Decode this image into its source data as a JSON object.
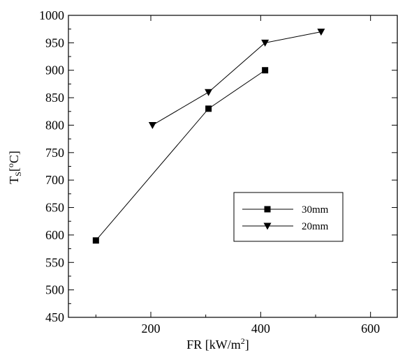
{
  "chart_data": {
    "type": "line",
    "xlabel": {
      "base": "FR [kW/m",
      "sup": "2",
      "suffix": "]"
    },
    "ylabel": {
      "base": "T",
      "sub": "S",
      "bracket_open": "[",
      "sup": "o",
      "unit": "C]"
    },
    "xlim": [
      50,
      650
    ],
    "ylim": [
      450,
      1000
    ],
    "x_ticks": [
      200,
      400,
      600
    ],
    "x_tick_labels": [
      "200",
      "400",
      "600"
    ],
    "y_ticks": [
      450,
      500,
      550,
      600,
      650,
      700,
      750,
      800,
      850,
      900,
      950,
      1000
    ],
    "y_tick_labels": [
      "450",
      "500",
      "550",
      "600",
      "650",
      "700",
      "750",
      "800",
      "850",
      "900",
      "950",
      "1000"
    ],
    "grid": false,
    "legend_position": "center-right",
    "series": [
      {
        "name": "30mm",
        "marker": "square",
        "color": "#000000",
        "x": [
          100,
          305,
          408
        ],
        "y": [
          590,
          830,
          900
        ]
      },
      {
        "name": "20mm",
        "marker": "triangle-down",
        "color": "#000000",
        "x": [
          203,
          305,
          408,
          510
        ],
        "y": [
          800,
          860,
          950,
          970
        ]
      }
    ]
  }
}
